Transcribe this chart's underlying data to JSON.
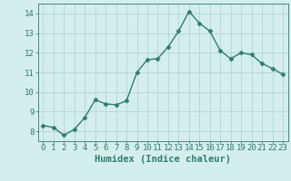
{
  "x": [
    0,
    1,
    2,
    3,
    4,
    5,
    6,
    7,
    8,
    9,
    10,
    11,
    12,
    13,
    14,
    15,
    16,
    17,
    18,
    19,
    20,
    21,
    22,
    23
  ],
  "y": [
    8.3,
    8.2,
    7.8,
    8.1,
    8.7,
    9.6,
    9.4,
    9.35,
    9.55,
    11.0,
    11.65,
    11.7,
    12.3,
    13.1,
    14.1,
    13.5,
    13.1,
    12.1,
    11.7,
    12.0,
    11.9,
    11.45,
    11.2,
    10.9
  ],
  "line_color": "#2e7d6e",
  "marker": "D",
  "marker_size": 2.5,
  "bg_color": "#d4eeee",
  "grid_color": "#aed0cc",
  "xlabel": "Humidex (Indice chaleur)",
  "ylim": [
    7.5,
    14.5
  ],
  "xlim": [
    -0.5,
    23.5
  ],
  "yticks": [
    8,
    9,
    10,
    11,
    12,
    13,
    14
  ],
  "xticks": [
    0,
    1,
    2,
    3,
    4,
    5,
    6,
    7,
    8,
    9,
    10,
    11,
    12,
    13,
    14,
    15,
    16,
    17,
    18,
    19,
    20,
    21,
    22,
    23
  ],
  "tick_label_size": 6.5,
  "xlabel_size": 7.5,
  "line_width": 1.0,
  "axis_color": "#2e7d6e",
  "spine_color": "#4a8878"
}
